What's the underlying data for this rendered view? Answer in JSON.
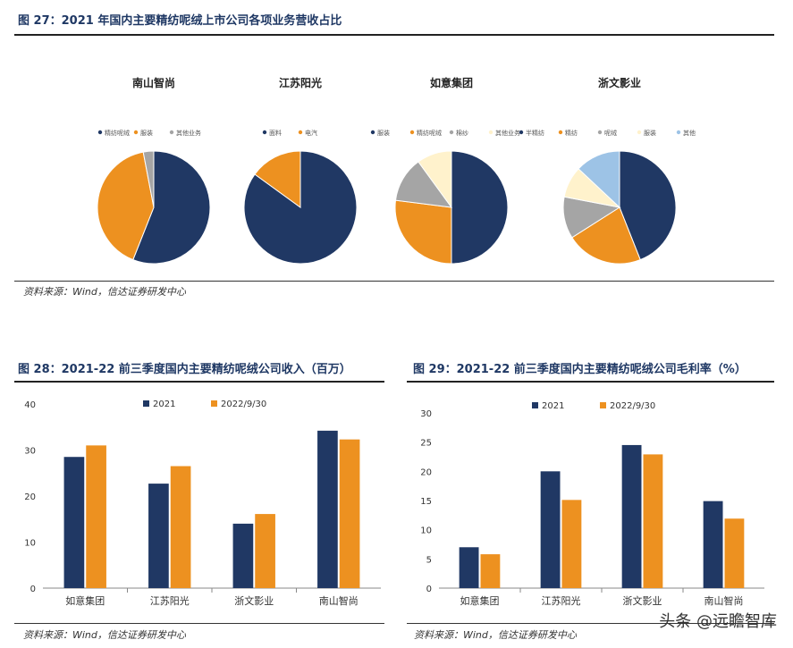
{
  "figures": {
    "fig27": {
      "title": "图 27：2021 年国内主要精纺呢绒上市公司各项业务营收占比",
      "source": "资料来源：Wind，信达证券研发中心"
    },
    "fig28": {
      "title": "图 28：2021-22 前三季度国内主要精纺呢绒公司收入（百万）",
      "source": "资料来源：Wind，信达证券研发中心"
    },
    "fig29": {
      "title": "图 29：2021-22 前三季度国内主要精纺呢绒公司毛利率（%）",
      "source": "资料来源：Wind，信达证券研发中心"
    }
  },
  "watermark": "头条 @远瞻智库",
  "colors": {
    "navy": "#203864",
    "orange": "#ED9120",
    "gray": "#A5A5A5",
    "cream": "#FFF2CC",
    "lightblue": "#9DC3E6",
    "lightgray": "#C9C9C9"
  },
  "chart_data": [
    {
      "type": "pie",
      "title": "南山智尚",
      "legend": [
        "精纺呢绒",
        "服装",
        "其他业务"
      ],
      "values": [
        56,
        41,
        3
      ]
    },
    {
      "type": "pie",
      "title": "江苏阳光",
      "legend": [
        "面料",
        "电汽"
      ],
      "values": [
        85,
        15
      ]
    },
    {
      "type": "pie",
      "title": "如意集团",
      "legend": [
        "服装",
        "精纺呢绒",
        "棉纱",
        "其他业务"
      ],
      "values": [
        50,
        27,
        13,
        10
      ]
    },
    {
      "type": "pie",
      "title": "浙文影业",
      "legend": [
        "半精纺",
        "精纺",
        "呢绒",
        "服装",
        "其他"
      ],
      "values": [
        44,
        22,
        12,
        9,
        13
      ]
    },
    {
      "type": "bar",
      "title": "",
      "categories": [
        "如意集团",
        "江苏阳光",
        "浙文影业",
        "南山智尚"
      ],
      "series": [
        {
          "name": "2021",
          "values": [
            28.5,
            22.7,
            14,
            34.2
          ]
        },
        {
          "name": "2022/9/30",
          "values": [
            31,
            26.5,
            16.1,
            32.3
          ]
        }
      ],
      "ylim": [
        0,
        40
      ],
      "yticks": [
        0,
        10,
        20,
        30,
        40
      ],
      "legend_position": "top"
    },
    {
      "type": "bar",
      "title": "",
      "categories": [
        "如意集团",
        "江苏阳光",
        "浙文影业",
        "南山智尚"
      ],
      "series": [
        {
          "name": "2021",
          "values": [
            7,
            20,
            24.5,
            14.9
          ]
        },
        {
          "name": "2022/9/30",
          "values": [
            5.8,
            15.1,
            22.9,
            11.9
          ]
        }
      ],
      "ylim": [
        0,
        30
      ],
      "yticks": [
        0,
        5,
        10,
        15,
        20,
        25,
        30
      ],
      "legend_position": "top"
    }
  ]
}
